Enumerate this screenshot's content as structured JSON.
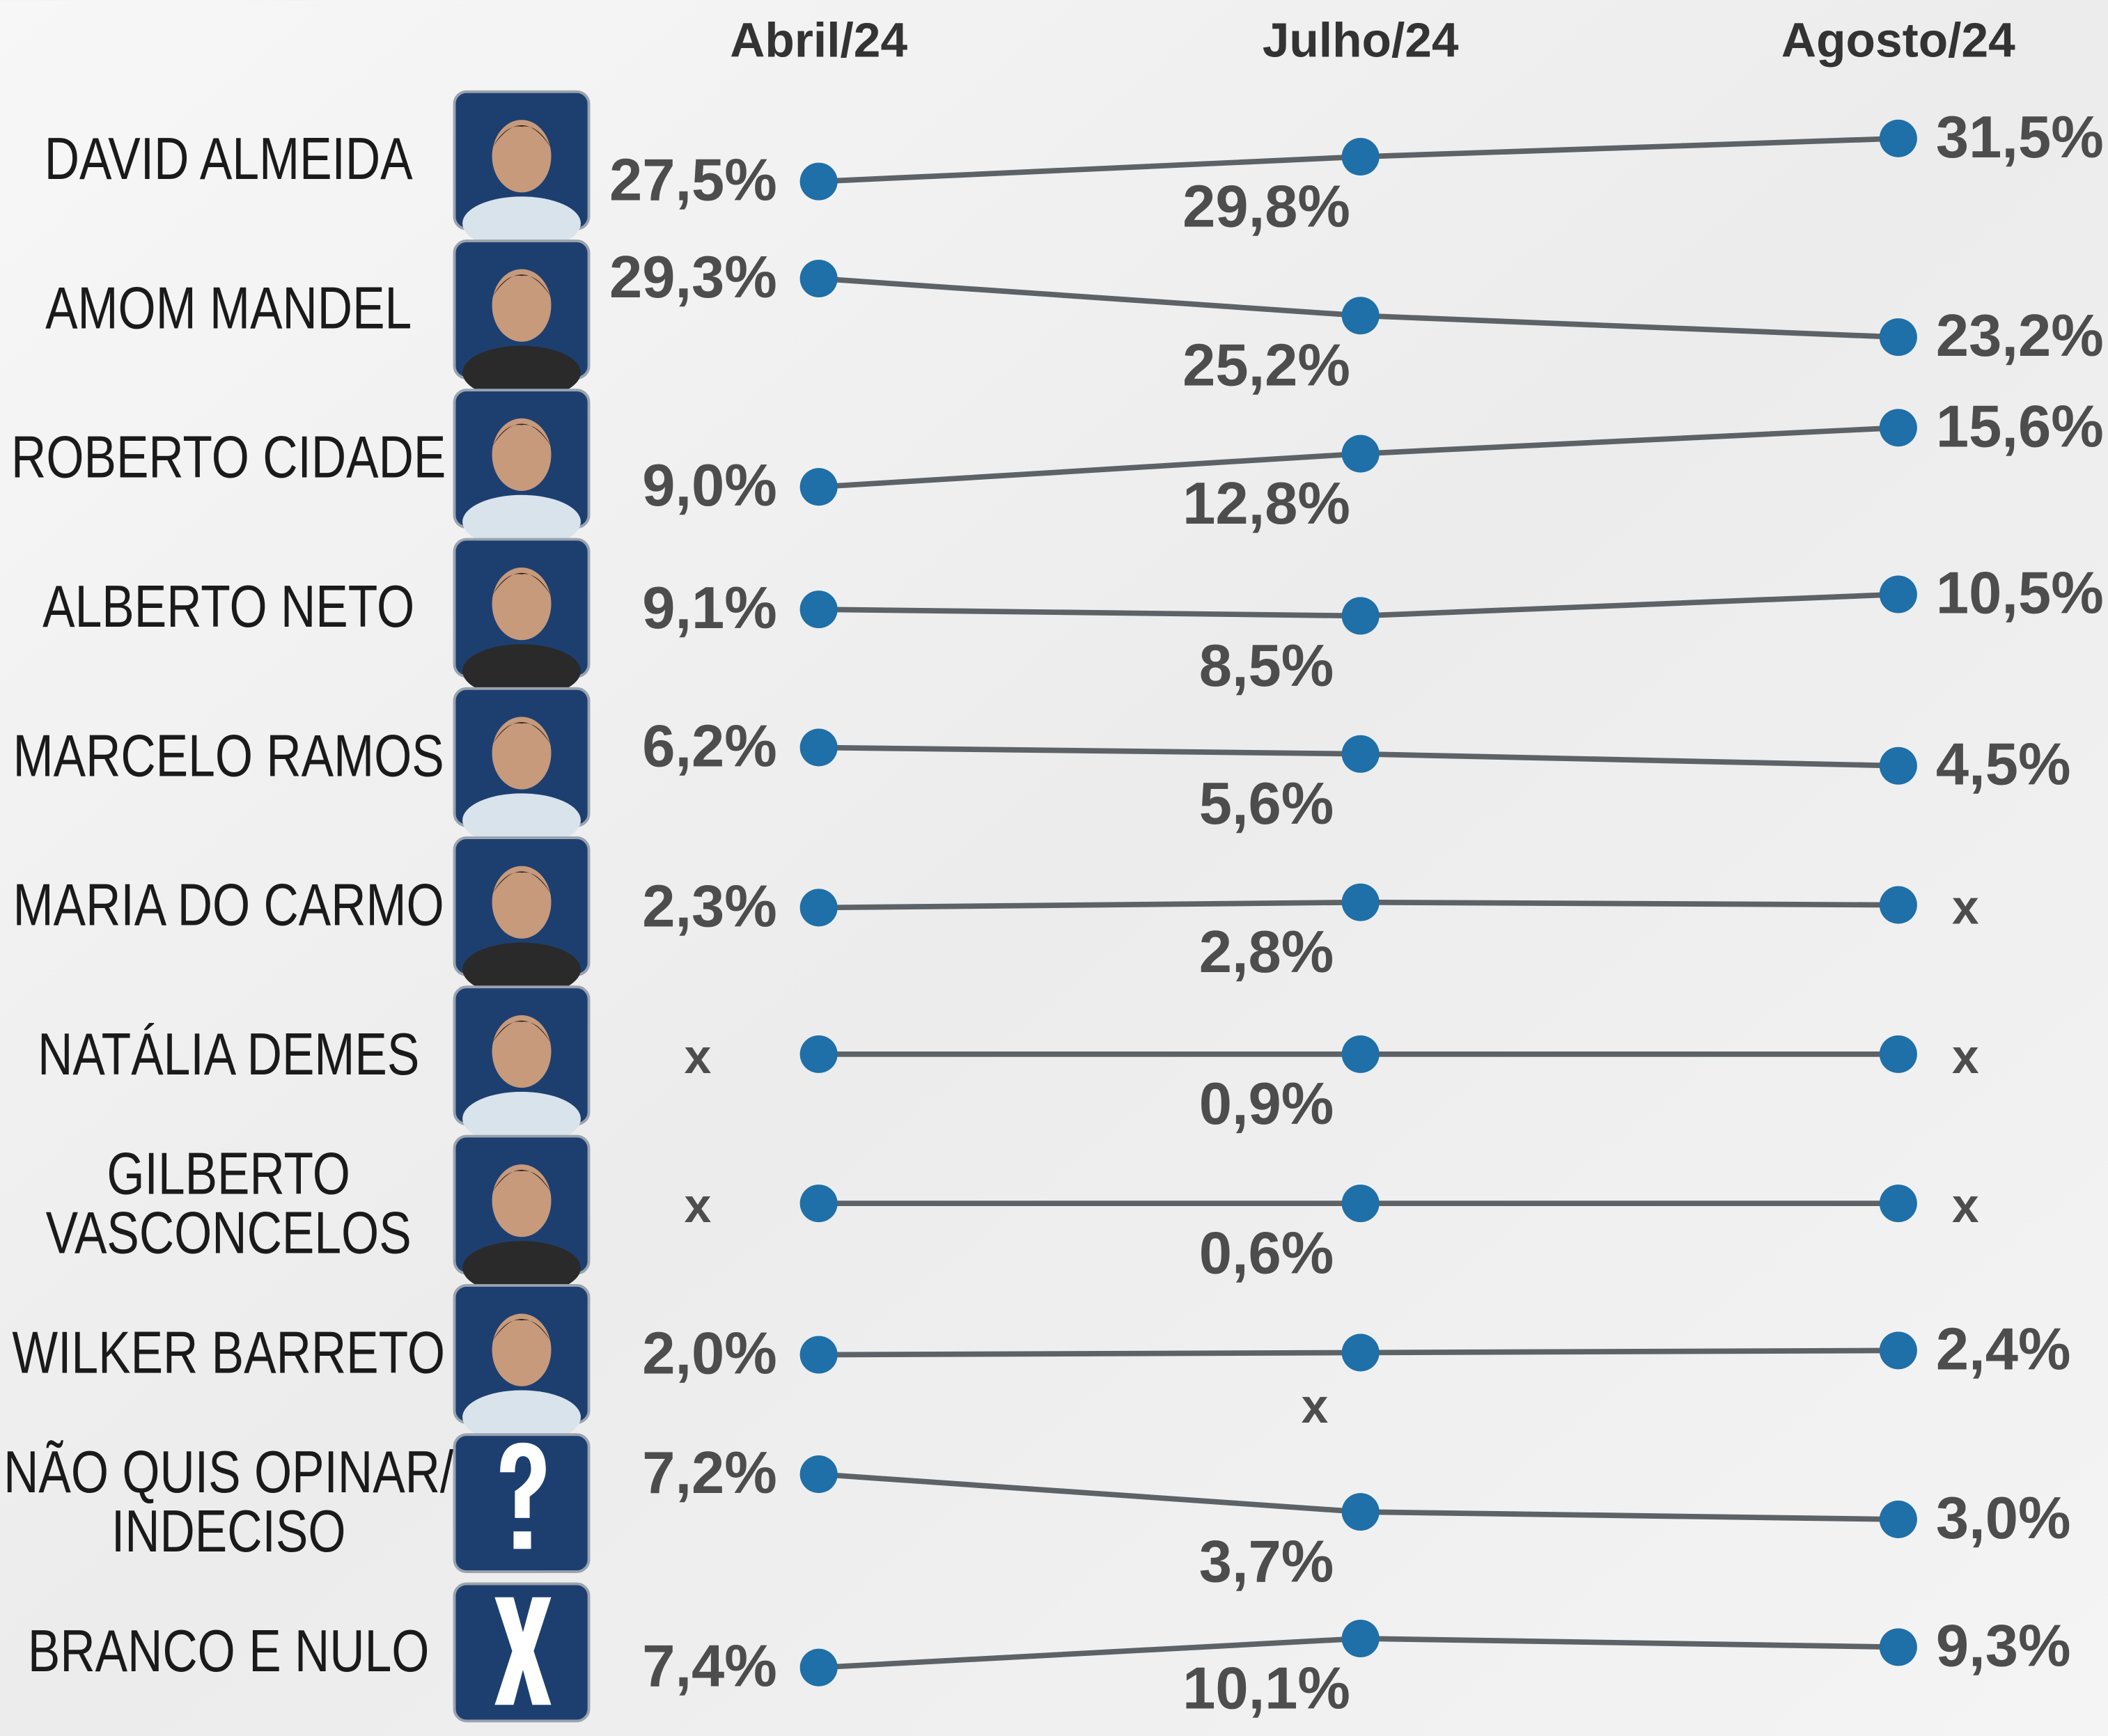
{
  "chart_data": {
    "type": "slope",
    "categories": [
      "Abril/24",
      "Julho/24",
      "Agosto/24"
    ],
    "marker_color": "#1f6fa8",
    "line_color": "#5d6266",
    "series": [
      {
        "name": "DAVID ALMEIDA",
        "values": [
          27.5,
          29.8,
          31.5
        ],
        "value_labels": [
          "27,5%",
          "29,8%",
          "31,5%"
        ]
      },
      {
        "name": "AMOM MANDEL",
        "values": [
          29.3,
          25.2,
          23.2
        ],
        "value_labels": [
          "29,3%",
          "25,2%",
          "23,2%"
        ]
      },
      {
        "name": "ROBERTO CIDADE",
        "values": [
          9.0,
          12.8,
          15.6
        ],
        "value_labels": [
          "9,0%",
          "12,8%",
          "15,6%"
        ]
      },
      {
        "name": "ALBERTO NETO",
        "values": [
          9.1,
          8.5,
          10.5
        ],
        "value_labels": [
          "9,1%",
          "8,5%",
          "10,5%"
        ]
      },
      {
        "name": "MARCELO RAMOS",
        "values": [
          6.2,
          5.6,
          4.5
        ],
        "value_labels": [
          "6,2%",
          "5,6%",
          "4,5%"
        ]
      },
      {
        "name": "MARIA DO CARMO",
        "values": [
          2.3,
          2.8,
          null
        ],
        "value_labels": [
          "2,3%",
          "2,8%",
          "x"
        ]
      },
      {
        "name": "NATÁLIA DEMES",
        "values": [
          null,
          0.9,
          null
        ],
        "value_labels": [
          "x",
          "0,9%",
          "x"
        ]
      },
      {
        "name": "GILBERTO\nVASCONCELOS",
        "values": [
          null,
          0.6,
          null
        ],
        "value_labels": [
          "x",
          "0,6%",
          "x"
        ]
      },
      {
        "name": "WILKER BARRETO",
        "values": [
          2.0,
          null,
          2.4
        ],
        "value_labels": [
          "2,0%",
          "x",
          "2,4%"
        ]
      },
      {
        "name": "NÃO QUIS OPINAR/\nINDECISO",
        "values": [
          7.2,
          3.7,
          3.0
        ],
        "value_labels": [
          "7,2%",
          "3,7%",
          "3,0%"
        ]
      },
      {
        "name": "BRANCO E NULO",
        "values": [
          7.4,
          10.1,
          9.3
        ],
        "value_labels": [
          "7,4%",
          "10,1%",
          "9,3%"
        ]
      }
    ]
  }
}
